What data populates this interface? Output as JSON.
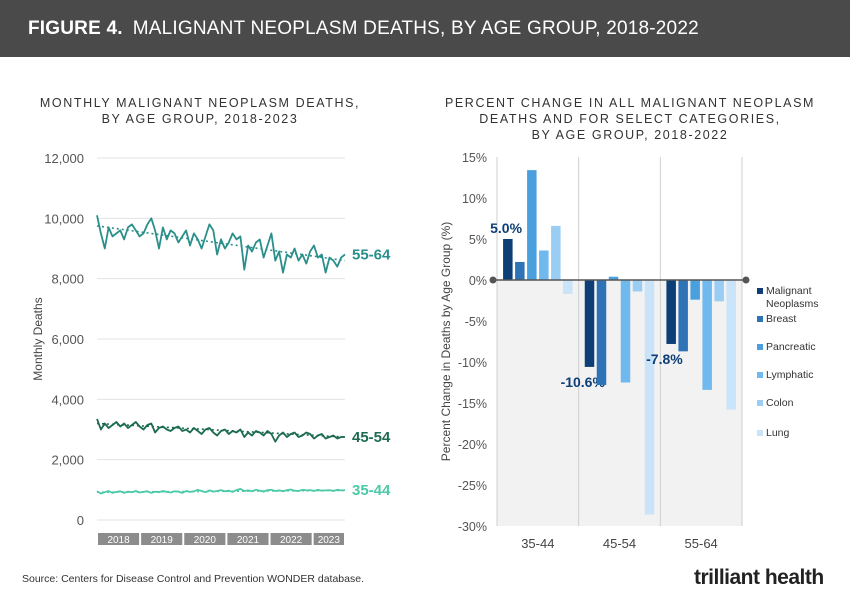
{
  "header": {
    "figure_label": "FIGURE 4.",
    "title": "MALIGNANT NEOPLASM DEATHS, BY AGE GROUP, 2018-2022"
  },
  "left_title": [
    "MONTHLY MALIGNANT NEOPLASM DEATHS,",
    "BY AGE GROUP, 2018-2023"
  ],
  "right_title": [
    "PERCENT CHANGE IN ALL MALIGNANT NEOPLASM",
    "DEATHS AND FOR SELECT CATEGORIES,",
    "BY AGE GROUP, 2018-2022"
  ],
  "source": "Source: Centers for Disease Control and Prevention WONDER database.",
  "logo": "trilliant health",
  "chart_data": [
    {
      "type": "line",
      "title": "MONTHLY MALIGNANT NEOPLASM DEATHS, BY AGE GROUP, 2018-2023",
      "xlabel": "",
      "ylabel": "Monthly Deaths",
      "ylim": [
        0,
        12000
      ],
      "yticks": [
        "0",
        "2,000",
        "4,000",
        "6,000",
        "8,000",
        "10,000",
        "12,000"
      ],
      "year_labels": [
        "2018",
        "2019",
        "2020",
        "2021",
        "2022",
        "2023"
      ],
      "grid": true,
      "series": [
        {
          "name": "55-64",
          "color": "#2a8f8a",
          "trend_start": 9750,
          "trend_end": 8600,
          "values": [
            10100,
            9500,
            9000,
            9700,
            9400,
            9500,
            9600,
            9300,
            9700,
            9800,
            9600,
            9400,
            9500,
            9800,
            10000,
            9600,
            9000,
            9700,
            9300,
            9600,
            9500,
            9200,
            9400,
            9600,
            9100,
            9500,
            9300,
            9000,
            9400,
            9800,
            9600,
            8800,
            9300,
            9000,
            9200,
            9500,
            9300,
            9400,
            8300,
            9100,
            8900,
            9200,
            9300,
            8700,
            9100,
            9500,
            8600,
            8900,
            8200,
            8800,
            8700,
            9000,
            8600,
            8800,
            8500,
            8900,
            9100,
            8700,
            8800,
            8200,
            8700,
            8600,
            8400,
            8700,
            8800
          ]
        },
        {
          "name": "45-54",
          "color": "#1d6b50",
          "trend_start": 3200,
          "trend_end": 2750,
          "values": [
            3350,
            3000,
            3200,
            3050,
            3150,
            3250,
            3100,
            3200,
            3050,
            3150,
            3250,
            3100,
            3000,
            3150,
            3200,
            2900,
            3050,
            3100,
            3000,
            2950,
            3050,
            3100,
            2950,
            3000,
            2900,
            3050,
            2950,
            2850,
            3000,
            3050,
            2900,
            2800,
            2950,
            3000,
            2850,
            2950,
            2900,
            3000,
            2750,
            2900,
            2800,
            2950,
            2900,
            2800,
            2950,
            2850,
            2600,
            2800,
            2900,
            2750,
            2850,
            2900,
            2750,
            2800,
            2900,
            2850,
            2700,
            2800,
            2850,
            2700,
            2750,
            2800,
            2700,
            2750,
            2750
          ]
        },
        {
          "name": "35-44",
          "color": "#4cc9a8",
          "trend_start": 920,
          "trend_end": 980,
          "values": [
            950,
            880,
            920,
            960,
            900,
            930,
            950,
            900,
            940,
            920,
            960,
            910,
            930,
            950,
            900,
            940,
            920,
            960,
            930,
            910,
            950,
            940,
            900,
            960,
            930,
            950,
            1000,
            960,
            920,
            980,
            940,
            960,
            990,
            950,
            970,
            930,
            990,
            1030,
            960,
            980,
            950,
            1000,
            970,
            940,
            990,
            1000,
            960,
            980,
            950,
            990,
            1010,
            970,
            960,
            1000,
            980,
            990,
            960,
            1000,
            970,
            980,
            990,
            960,
            1000,
            980,
            990
          ]
        }
      ]
    },
    {
      "type": "bar",
      "title": "PERCENT CHANGE IN ALL MALIGNANT NEOPLASM DEATHS AND FOR SELECT CATEGORIES, BY AGE GROUP, 2018-2022",
      "xlabel": "",
      "ylabel": "Percent Change in Deaths by Age Group (%)",
      "ylim": [
        -30,
        15
      ],
      "yticks": [
        "15%",
        "10%",
        "5%",
        "0%",
        "-5%",
        "-10%",
        "-15%",
        "-20%",
        "-25%",
        "-30%"
      ],
      "categories": [
        "35-44",
        "45-54",
        "55-64"
      ],
      "series": [
        {
          "name": "Malignant Neoplasms",
          "color": "#0d3e75",
          "values": [
            5.0,
            -10.6,
            -7.8
          ]
        },
        {
          "name": "Breast",
          "color": "#2f73b7",
          "values": [
            2.2,
            -12.8,
            -8.7
          ]
        },
        {
          "name": "Pancreatic",
          "color": "#4aa0df",
          "values": [
            13.4,
            0.4,
            -2.4
          ]
        },
        {
          "name": "Lymphatic",
          "color": "#6fb9ee",
          "values": [
            3.6,
            -12.5,
            -13.4
          ]
        },
        {
          "name": "Colon",
          "color": "#99cdf4",
          "values": [
            6.6,
            -1.4,
            -2.6
          ]
        },
        {
          "name": "Lung",
          "color": "#c9e3f9",
          "values": [
            -1.7,
            -28.6,
            -15.8
          ]
        }
      ],
      "data_labels": [
        "5.0%",
        "-10.6%",
        "-7.8%"
      ]
    }
  ]
}
